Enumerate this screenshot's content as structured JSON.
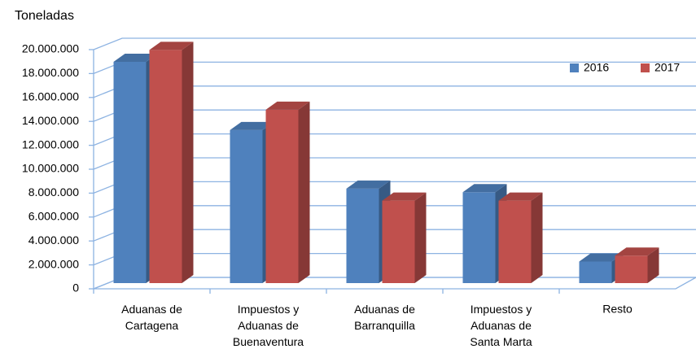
{
  "chart_data": {
    "type": "bar3d",
    "y_axis_label": "Toneladas",
    "categories": [
      "Aduanas de\nCartagena",
      "Impuestos y\nAduanas de\nBuenaventura",
      "Aduanas de\nBarranquilla",
      "Impuestos y\nAduanas de\nSanta Marta",
      "Resto"
    ],
    "series": [
      {
        "name": "2016",
        "color": "#4f81bd",
        "values": [
          18500000,
          12800000,
          7900000,
          7600000,
          1800000
        ]
      },
      {
        "name": "2017",
        "color": "#c0504d",
        "values": [
          19500000,
          14500000,
          6900000,
          6900000,
          2300000
        ]
      }
    ],
    "ylim": [
      0,
      20000000
    ],
    "yticks": [
      {
        "value": 0,
        "label": "0"
      },
      {
        "value": 2000000,
        "label": "2.000.000"
      },
      {
        "value": 4000000,
        "label": "4.000.000"
      },
      {
        "value": 6000000,
        "label": "6.000.000"
      },
      {
        "value": 8000000,
        "label": "8.000.000"
      },
      {
        "value": 10000000,
        "label": "10.000.000"
      },
      {
        "value": 12000000,
        "label": "12.000.000"
      },
      {
        "value": 14000000,
        "label": "14.000.000"
      },
      {
        "value": 16000000,
        "label": "16.000.000"
      },
      {
        "value": 18000000,
        "label": "18.000.000"
      },
      {
        "value": 20000000,
        "label": "20.000.000"
      }
    ],
    "grid": true,
    "legend": "top-right"
  }
}
